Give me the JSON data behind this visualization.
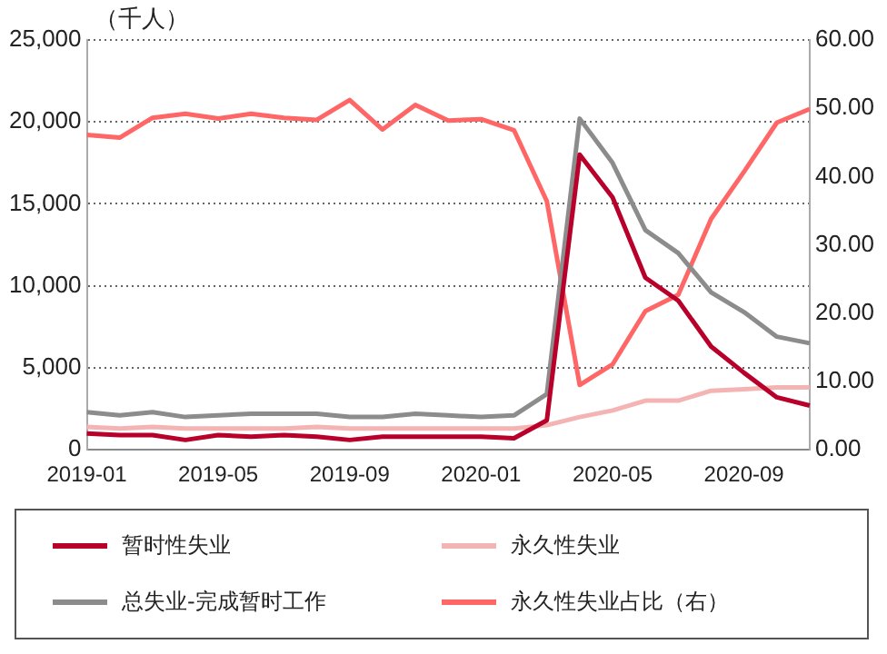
{
  "chart_data": {
    "type": "line",
    "ylabel": "（千人）",
    "categories": [
      "2019-01",
      null,
      null,
      null,
      "2019-05",
      null,
      null,
      null,
      "2019-09",
      null,
      null,
      null,
      "2020-01",
      null,
      null,
      null,
      "2020-05",
      null,
      null,
      null,
      "2020-09",
      null,
      null
    ],
    "series": [
      {
        "name": "暂时性失业",
        "color": "#b8002a",
        "values": [
          1000,
          900,
          900,
          600,
          900,
          800,
          900,
          800,
          600,
          800,
          800,
          800,
          800,
          700,
          1800,
          18000,
          15400,
          10500,
          9100,
          6300,
          4700,
          3200,
          2700
        ]
      },
      {
        "name": "永久性失业",
        "color": "#f4b4b4",
        "values": [
          1400,
          1300,
          1400,
          1300,
          1300,
          1300,
          1300,
          1400,
          1300,
          1300,
          1300,
          1300,
          1300,
          1300,
          1500,
          2000,
          2400,
          3000,
          3000,
          3600,
          3700,
          3800,
          3800
        ]
      },
      {
        "name": "总失业-完成暂时工作",
        "color": "#8c8c8c",
        "values": [
          2300,
          2100,
          2300,
          2000,
          2100,
          2200,
          2200,
          2200,
          2000,
          2000,
          2200,
          2100,
          2000,
          2100,
          3400,
          20200,
          17500,
          13400,
          12000,
          9600,
          8400,
          6900,
          6500
        ]
      },
      {
        "name": "永久性失业占比（右）",
        "color": "#ff6666",
        "axis": "y2",
        "values": [
          46.1,
          45.7,
          48.6,
          49.2,
          48.5,
          49.2,
          48.6,
          48.3,
          51.2,
          46.9,
          50.5,
          48.2,
          48.4,
          46.8,
          36.4,
          9.5,
          12.5,
          20.3,
          22.7,
          33.8,
          40.7,
          47.9,
          49.9
        ]
      }
    ],
    "ylim": [
      0,
      25000
    ],
    "yticks": [
      0,
      {
        "value": 5000,
        "label": "5,000"
      },
      {
        "value": 10000,
        "label": "10,000"
      },
      {
        "value": 15000,
        "label": "15,000"
      },
      {
        "value": 20000,
        "label": "20,000"
      },
      {
        "value": 25000,
        "label": "25,000"
      }
    ],
    "y2lim": [
      0,
      60
    ],
    "y2ticks": [
      {
        "value": 0,
        "label": "0.00"
      },
      {
        "value": 10,
        "label": "10.00"
      },
      {
        "value": 20,
        "label": "20.00"
      },
      {
        "value": 30,
        "label": "30.00"
      },
      {
        "value": 40,
        "label": "40.00"
      },
      {
        "value": 50,
        "label": "50.00"
      },
      {
        "value": 60,
        "label": "60.00"
      }
    ],
    "grid": "y",
    "legend": "bottom",
    "marker": "none",
    "line_style": "solid"
  }
}
